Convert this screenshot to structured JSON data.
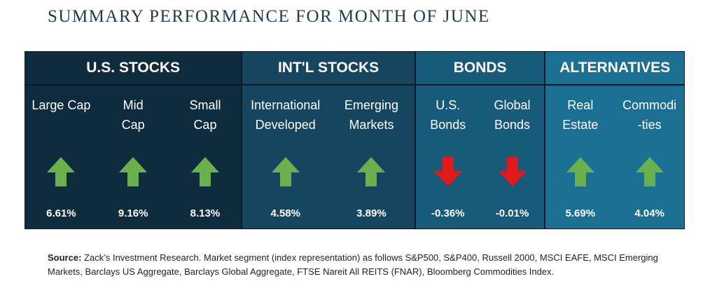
{
  "title": "SUMMARY PERFORMANCE FOR MONTH OF JUNE",
  "colors": {
    "up": "#6ab04c",
    "down": "#e0191b"
  },
  "groups": [
    {
      "name": "U.S. STOCKS",
      "items": [
        {
          "label": "Large Cap",
          "value": "6.61%",
          "direction": "up",
          "icon": "arrow-up-icon"
        },
        {
          "label": "Mid\nCap",
          "value": "9.16%",
          "direction": "up",
          "icon": "arrow-up-icon"
        },
        {
          "label": "Small\nCap",
          "value": "8.13%",
          "direction": "up",
          "icon": "arrow-up-icon"
        }
      ]
    },
    {
      "name": "INT'L STOCKS",
      "items": [
        {
          "label": "International\nDeveloped",
          "value": "4.58%",
          "direction": "up",
          "icon": "arrow-up-icon"
        },
        {
          "label": "Emerging\nMarkets",
          "value": "3.89%",
          "direction": "up",
          "icon": "arrow-up-icon"
        }
      ]
    },
    {
      "name": "BONDS",
      "items": [
        {
          "label": "U.S.\nBonds",
          "value": "-0.36%",
          "direction": "down",
          "icon": "arrow-down-icon"
        },
        {
          "label": "Global\nBonds",
          "value": "-0.01%",
          "direction": "down",
          "icon": "arrow-down-icon"
        }
      ]
    },
    {
      "name": "ALTERNATIVES",
      "items": [
        {
          "label": "Real\nEstate",
          "value": "5.69%",
          "direction": "up",
          "icon": "arrow-up-icon"
        },
        {
          "label": "Commodi\n-ties",
          "value": "4.04%",
          "direction": "up",
          "icon": "arrow-up-icon"
        }
      ]
    }
  ],
  "source": {
    "label": "Source:",
    "text": " Zack’s Investment Research. Market segment (index representation) as follows S&P500, S&P400, Russell 2000, MSCI EAFE, MSCI Emerging Markets, Barclays US Aggregate, Barclays Global Aggregate, FTSE Nareit All REITS (FNAR), Bloomberg Commodities Index."
  }
}
